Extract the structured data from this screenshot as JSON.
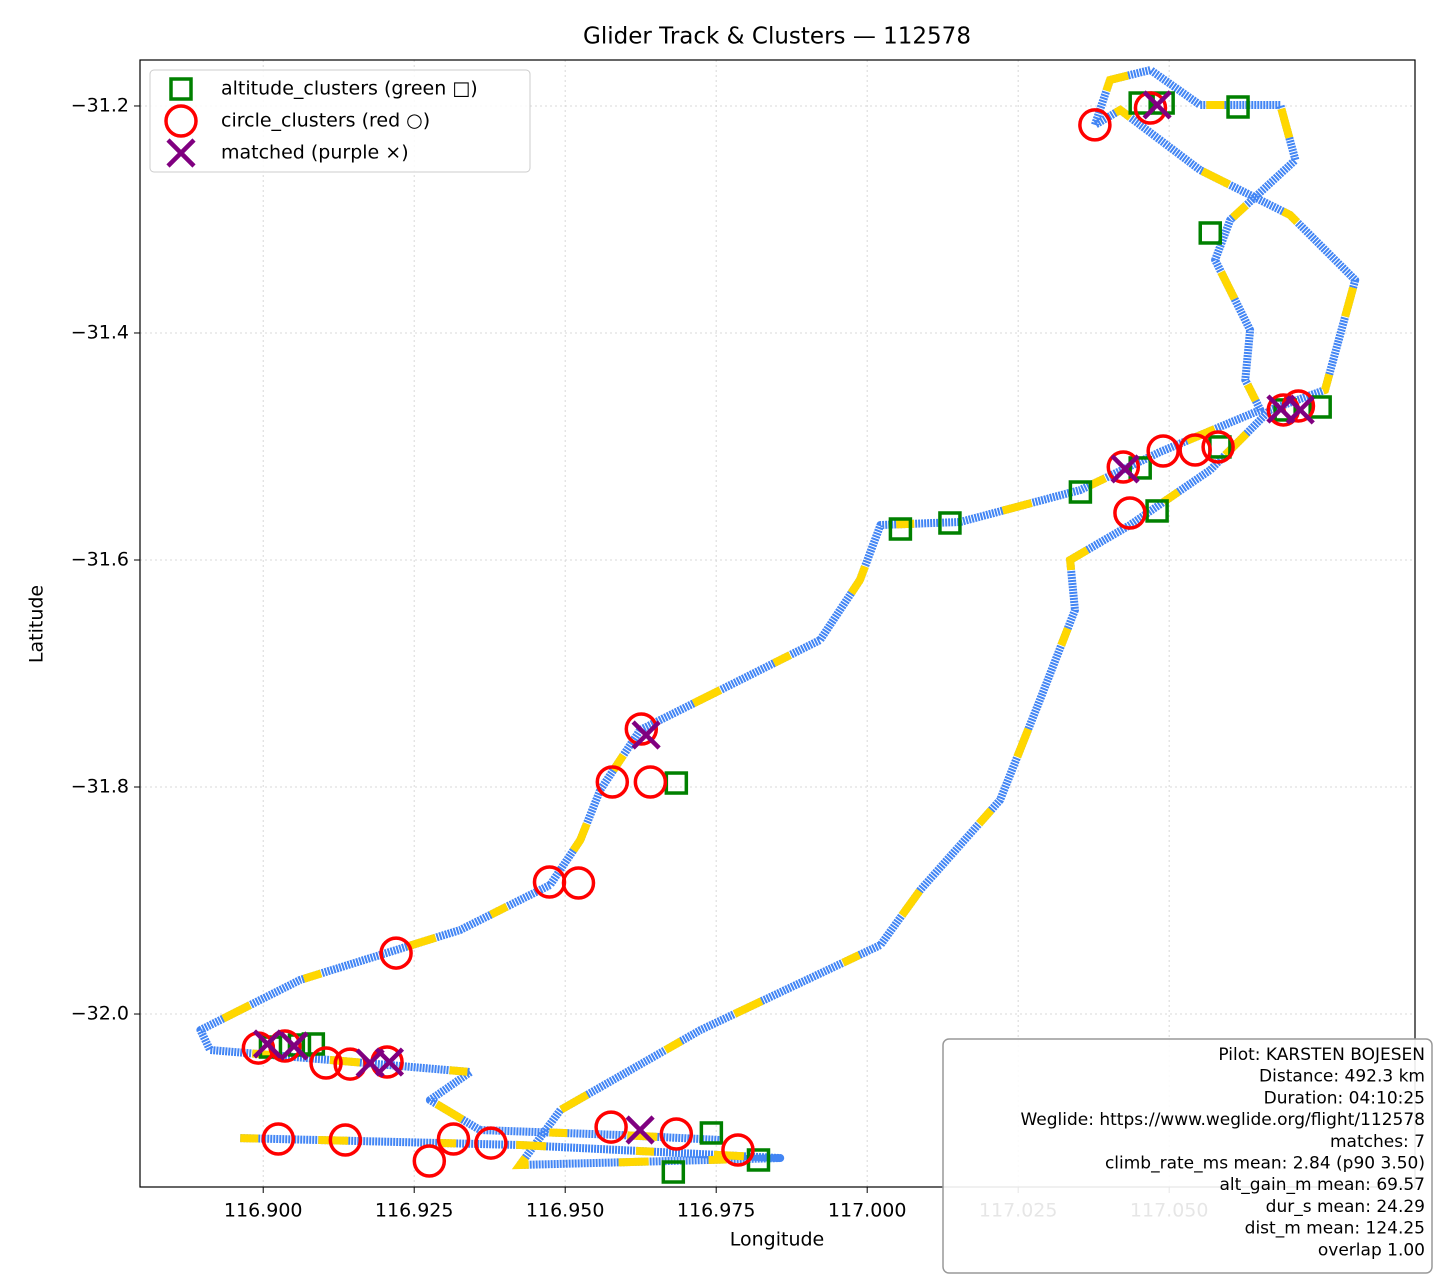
{
  "chart_data": {
    "type": "scatter",
    "title": "Glider Track & Clusters — 112578",
    "x_label": "Longitude",
    "y_label": "Latitude",
    "xlim": [
      116.8796,
      117.0907
    ],
    "ylim": [
      -32.1524,
      -31.1595
    ],
    "xticks": [
      {
        "value": 116.9,
        "label": "116.900"
      },
      {
        "value": 116.925,
        "label": "116.925"
      },
      {
        "value": 116.95,
        "label": "116.950"
      },
      {
        "value": 116.975,
        "label": "116.975"
      },
      {
        "value": 117.0,
        "label": "117.000"
      },
      {
        "value": 117.025,
        "label": "117.025"
      },
      {
        "value": 117.05,
        "label": "117.050"
      }
    ],
    "yticks": [
      {
        "value": -31.2,
        "label": "−31.2"
      },
      {
        "value": -31.4,
        "label": "−31.4"
      },
      {
        "value": -31.6,
        "label": "−31.6"
      },
      {
        "value": -31.8,
        "label": "−31.8"
      },
      {
        "value": -32.0,
        "label": "−32.0"
      }
    ],
    "grid": true,
    "legend": "upper left",
    "track": {
      "color": "#4285f4",
      "overlay_color": "#ffd700",
      "x": [
        116.8962,
        116.9425,
        116.9856,
        116.9425,
        116.9492,
        116.9724,
        117.0022,
        117.0088,
        117.022,
        117.0286,
        117.0344,
        117.0336,
        117.0435,
        117.0568,
        117.0667,
        117.0758,
        117.0808,
        117.07,
        117.0551,
        117.0419,
        117.0377,
        117.0402,
        117.0469,
        117.0551,
        117.0684,
        117.0709,
        117.0601,
        117.0576,
        117.0634,
        117.0626,
        117.0651,
        117.0485,
        117.0353,
        117.0154,
        117.0022,
        116.9988,
        116.9922,
        116.9757,
        116.9624,
        116.9558,
        116.9525,
        116.9475,
        116.9326,
        116.9061,
        116.8896,
        116.8912,
        116.9111,
        116.9343,
        116.9276,
        116.9359,
        116.9591,
        116.9757
      ],
      "y": [
        -32.1093,
        -32.1154,
        -32.1269,
        -32.133,
        -32.0846,
        -32.0141,
        -31.9392,
        -31.8907,
        -31.8115,
        -31.7233,
        -31.6441,
        -31.6,
        -31.5692,
        -31.5207,
        -31.4678,
        -31.4502,
        -31.3533,
        -31.296,
        -31.2564,
        -31.2035,
        -31.2167,
        -31.1771,
        -31.1683,
        -31.1991,
        -31.1991,
        -31.2476,
        -31.3004,
        -31.3357,
        -31.3974,
        -31.4414,
        -31.4678,
        -31.5048,
        -31.5383,
        -31.5665,
        -31.5692,
        -31.6176,
        -31.6705,
        -31.7145,
        -31.7498,
        -31.8026,
        -31.8467,
        -31.8863,
        -31.926,
        -31.97,
        -32.0141,
        -32.0317,
        -32.0405,
        -32.0511,
        -32.0758,
        -32.1022,
        -32.1066,
        -32.111
      ]
    },
    "series": [
      {
        "name": "altitude_clusters (green □)",
        "color": "#008000",
        "marker": "square",
        "x": [
          117.0452,
          117.049,
          117.0614,
          117.0568,
          117.075,
          117.0692,
          117.0584,
          117.0452,
          117.0353,
          117.048,
          117.0137,
          117.0055,
          116.9684,
          116.9083,
          116.906,
          116.9012,
          116.9742,
          116.982,
          116.9679
        ],
        "y": [
          -31.1974,
          -31.1974,
          -31.2009,
          -31.3119,
          -31.4652,
          -31.4678,
          -31.5004,
          -31.5189,
          -31.5401,
          -31.5568,
          -31.5674,
          -31.5727,
          -31.7965,
          -32.0264,
          -32.0273,
          -32.0291,
          -32.1048,
          -32.1286,
          -32.1392
        ]
      },
      {
        "name": "circle_clusters (red ○)",
        "color": "#ff0000",
        "marker": "circle",
        "x": [
          117.0377,
          117.0469,
          117.0689,
          117.0714,
          117.049,
          117.0543,
          117.0581,
          117.0424,
          117.0435,
          116.9626,
          116.9578,
          116.9641,
          116.9474,
          116.9522,
          116.922,
          116.8992,
          116.9036,
          116.9104,
          116.9144,
          116.9205,
          116.9025,
          116.9136,
          116.9275,
          116.9315,
          116.9377,
          116.9576,
          116.9684,
          116.9786
        ],
        "y": [
          -31.2167,
          -31.2018,
          -31.4678,
          -31.4643,
          -31.504,
          -31.5031,
          -31.5004,
          -31.5181,
          -31.5586,
          -31.7489,
          -31.7956,
          -31.7956,
          -31.8837,
          -31.8846,
          -31.9463,
          -32.03,
          -32.0282,
          -32.0432,
          -32.0441,
          -32.0423,
          -32.1101,
          -32.111,
          -32.1295,
          -32.1101,
          -32.1137,
          -32.0996,
          -32.1057,
          -32.1198
        ]
      },
      {
        "name": "matched (purple ×)",
        "color": "#800080",
        "marker": "x",
        "x": [
          117.048,
          117.0685,
          117.0717,
          117.0427,
          116.9634,
          116.9007,
          116.9051,
          116.9177,
          116.9209,
          116.9624
        ],
        "y": [
          -31.1991,
          -31.467,
          -31.4678,
          -31.5198,
          -31.7542,
          -32.0264,
          -32.0282,
          -32.0432,
          -32.0423,
          -32.1022
        ]
      }
    ],
    "info": [
      "Pilot: KARSTEN BOJESEN",
      "Distance: 492.3 km",
      "Duration: 04:10:25",
      "Weglide: https://www.weglide.org/flight/112578",
      "matches: 7",
      "climb_rate_ms mean: 2.84 (p90 3.50)",
      "alt_gain_m mean: 69.57",
      "dur_s mean: 24.29",
      "dist_m mean: 124.25",
      "overlap 1.00"
    ]
  }
}
